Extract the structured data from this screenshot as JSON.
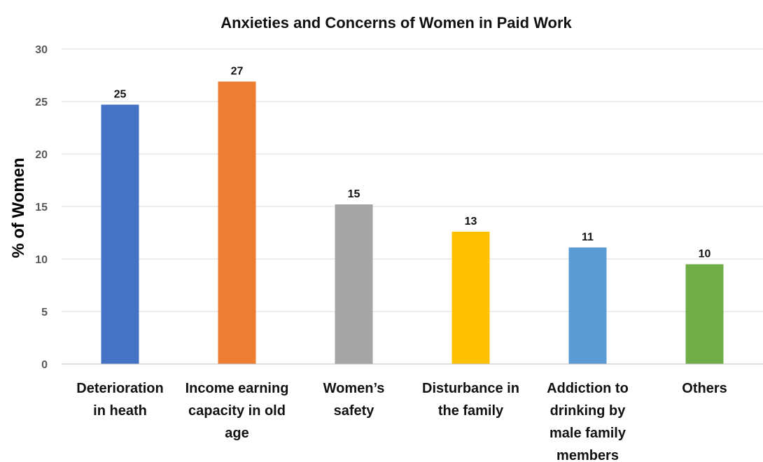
{
  "chart_data": {
    "type": "bar",
    "title": "Anxieties and Concerns of Women in Paid Work",
    "xlabel": "",
    "ylabel": "% of Women",
    "ylim": [
      0,
      30
    ],
    "yticks": [
      0,
      5,
      10,
      15,
      20,
      25,
      30
    ],
    "grid": true,
    "categories": [
      [
        "Deterioration",
        "in heath"
      ],
      [
        "Income earning",
        "capacity in old",
        "age"
      ],
      [
        "Women’s",
        "safety"
      ],
      [
        "Disturbance in",
        "the family"
      ],
      [
        "Addiction to",
        "drinking by",
        "male family",
        "members"
      ],
      [
        "Others"
      ]
    ],
    "values": [
      24.7,
      26.9,
      15.2,
      12.6,
      11.1,
      9.5
    ],
    "data_labels": [
      "25",
      "27",
      "15",
      "13",
      "11",
      "10"
    ],
    "colors": [
      "#4472C4",
      "#ED7D31",
      "#A5A5A5",
      "#FFC000",
      "#5B9BD5",
      "#70AD47"
    ]
  }
}
